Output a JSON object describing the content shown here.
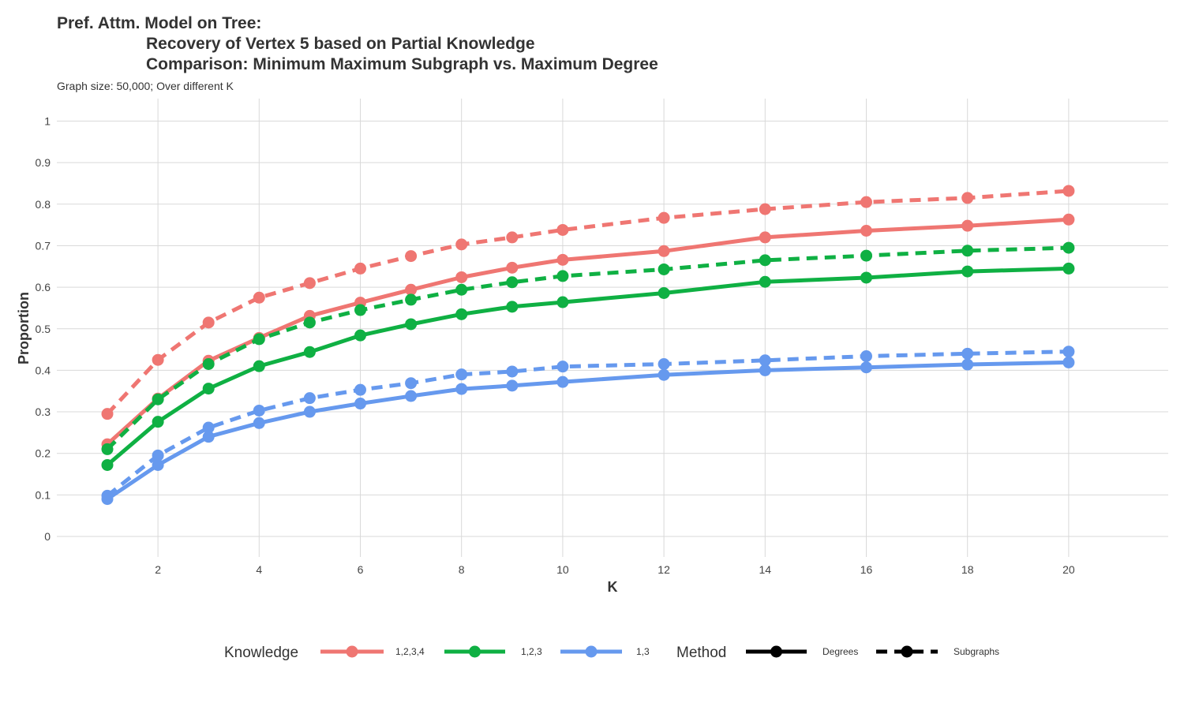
{
  "chart_data": {
    "type": "line",
    "title_lines": [
      "Pref. Attm. Model on Tree:",
      "Recovery of Vertex 5 based on Partial Knowledge",
      "Comparison: Minimum Maximum Subgraph vs. Maximum Degree"
    ],
    "subtitle": "Graph size: 50,000; Over different K",
    "xlabel": "K",
    "ylabel": "Proportion",
    "x_ticks": [
      2,
      4,
      6,
      8,
      10,
      12,
      14,
      16,
      18,
      20
    ],
    "x_tick_labels": [
      "2",
      "4",
      "6",
      "8",
      "10",
      "12",
      "14",
      "16",
      "18",
      "20"
    ],
    "y_ticks": [
      0,
      0.1,
      0.2,
      0.3,
      0.4,
      0.5,
      0.6,
      0.7,
      0.8,
      0.9,
      1
    ],
    "y_tick_labels": [
      "0",
      "0.1",
      "0.2",
      "0.3",
      "0.4",
      "0.5",
      "0.6",
      "0.7",
      "0.8",
      "0.9",
      "1"
    ],
    "xlim": [
      0,
      21
    ],
    "ylim": [
      0,
      1
    ],
    "grid": true,
    "legend_position": "bottom",
    "x": [
      1,
      2,
      3,
      4,
      5,
      6,
      7,
      8,
      9,
      10,
      12,
      14,
      16,
      18,
      20
    ],
    "legend": {
      "knowledge_title": "Knowledge",
      "knowledge_items": [
        {
          "label": "1,2,3,4",
          "color": "#ef7672"
        },
        {
          "label": "1,2,3",
          "color": "#0fb043"
        },
        {
          "label": "1,3",
          "color": "#6699ee"
        }
      ],
      "method_title": "Method",
      "method_items": [
        {
          "label": "Degrees",
          "dash": "solid"
        },
        {
          "label": "Subgraphs",
          "dash": "dashed"
        }
      ]
    },
    "series": [
      {
        "knowledge": "1,2,3,4",
        "method": "Subgraphs",
        "color": "#ef7672",
        "dash": "dashed",
        "values": [
          0.295,
          0.425,
          0.515,
          0.575,
          0.61,
          0.645,
          0.675,
          0.703,
          0.72,
          0.738,
          0.767,
          0.788,
          0.805,
          0.815,
          0.832
        ]
      },
      {
        "knowledge": "1,2,3,4",
        "method": "Degrees",
        "color": "#ef7672",
        "dash": "solid",
        "values": [
          0.222,
          0.332,
          0.423,
          0.478,
          0.531,
          0.563,
          0.594,
          0.624,
          0.647,
          0.666,
          0.687,
          0.72,
          0.736,
          0.748,
          0.763
        ]
      },
      {
        "knowledge": "1,2,3",
        "method": "Subgraphs",
        "color": "#0fb043",
        "dash": "dashed",
        "values": [
          0.21,
          0.33,
          0.415,
          0.475,
          0.515,
          0.545,
          0.57,
          0.594,
          0.612,
          0.627,
          0.643,
          0.665,
          0.676,
          0.688,
          0.695
        ]
      },
      {
        "knowledge": "1,2,3",
        "method": "Degrees",
        "color": "#0fb043",
        "dash": "solid",
        "values": [
          0.172,
          0.276,
          0.356,
          0.41,
          0.444,
          0.484,
          0.511,
          0.535,
          0.553,
          0.564,
          0.586,
          0.613,
          0.623,
          0.638,
          0.645
        ]
      },
      {
        "knowledge": "1,3",
        "method": "Subgraphs",
        "color": "#6699ee",
        "dash": "dashed",
        "values": [
          0.098,
          0.195,
          0.262,
          0.303,
          0.333,
          0.353,
          0.369,
          0.39,
          0.397,
          0.409,
          0.415,
          0.424,
          0.434,
          0.44,
          0.445
        ]
      },
      {
        "knowledge": "1,3",
        "method": "Degrees",
        "color": "#6699ee",
        "dash": "solid",
        "values": [
          0.09,
          0.172,
          0.24,
          0.273,
          0.3,
          0.32,
          0.338,
          0.355,
          0.363,
          0.372,
          0.389,
          0.4,
          0.407,
          0.414,
          0.419
        ]
      }
    ]
  }
}
